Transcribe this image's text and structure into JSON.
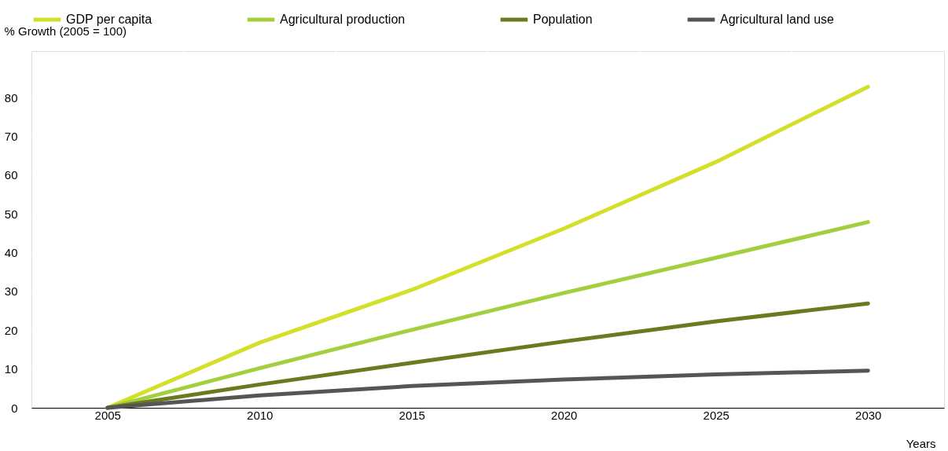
{
  "chart_data": {
    "type": "line",
    "xlabel": "Years",
    "ylabel": "% Growth (2005 = 100)",
    "x": [
      2005,
      2010,
      2015,
      2020,
      2025,
      2030
    ],
    "series": [
      {
        "name": "GDP per capita",
        "color": "#d4df2a",
        "values": [
          0,
          16.8,
          30.4,
          46.2,
          63.4,
          82.8
        ]
      },
      {
        "name": "Agricultural production",
        "color": "#a3cf3f",
        "values": [
          0,
          10.2,
          20.1,
          29.6,
          38.7,
          47.9
        ]
      },
      {
        "name": "Population",
        "color": "#6b7a1f",
        "values": [
          0,
          6,
          11.6,
          17.1,
          22.3,
          26.9
        ]
      },
      {
        "name": "Agricultural land use",
        "color": "#555555",
        "values": [
          0,
          3.2,
          5.6,
          7.3,
          8.6,
          9.6
        ]
      }
    ],
    "xlim": [
      2002.5,
      2032.5
    ],
    "xticks": [
      2005,
      2010,
      2015,
      2020,
      2025,
      2030,
      {
        "value": 2007.5,
        "label": null
      },
      {
        "value": 2012.5,
        "label": null
      },
      {
        "value": 2017.5,
        "label": null
      },
      {
        "value": 2022.5,
        "label": null
      },
      {
        "value": 2027.5,
        "label": null
      }
    ],
    "ylim": [
      0,
      92
    ],
    "yticks": [
      0,
      10,
      20,
      30,
      40,
      50,
      60,
      70,
      80
    ],
    "grid": true,
    "legend": "top",
    "marker": "none",
    "line_style": "solid"
  }
}
